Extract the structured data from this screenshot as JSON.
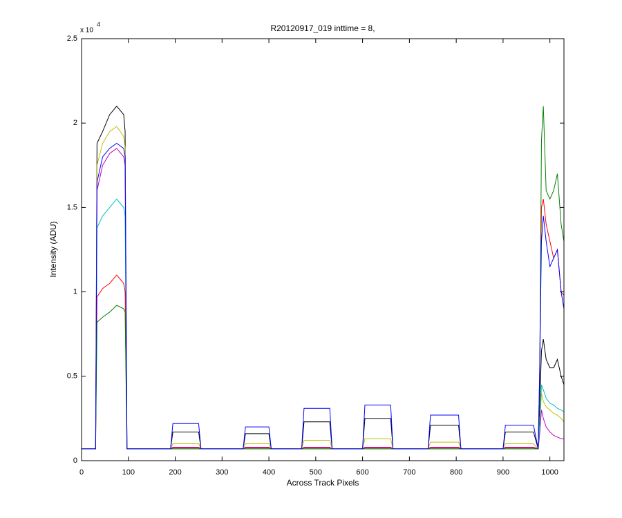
{
  "chart_data": {
    "type": "line",
    "title": "R20120917_019 inttime = 8,",
    "x_label": "Across Track Pixels",
    "y_label": "Intensity (ADU)",
    "y_multiplier": "x 10",
    "y_multiplier_exponent": "4",
    "xlim": [
      0,
      1030
    ],
    "ylim": [
      0,
      2.5
    ],
    "xticks": [
      0,
      100,
      200,
      300,
      400,
      500,
      600,
      700,
      800,
      900,
      1000
    ],
    "yticks": [
      0,
      0.5,
      1,
      1.5,
      2,
      2.5
    ],
    "grid": false,
    "x": [
      0,
      30,
      33,
      45,
      60,
      75,
      90,
      93,
      97,
      190,
      195,
      250,
      255,
      345,
      350,
      400,
      405,
      470,
      475,
      530,
      535,
      600,
      605,
      660,
      665,
      740,
      745,
      805,
      810,
      900,
      905,
      965,
      975,
      978,
      982,
      986,
      992,
      1000,
      1008,
      1016,
      1024,
      1030
    ],
    "series": [
      {
        "color": "#000000",
        "values": [
          0.07,
          0.07,
          1.88,
          1.95,
          2.05,
          2.1,
          2.05,
          1.95,
          0.07,
          0.07,
          0.17,
          0.17,
          0.07,
          0.07,
          0.16,
          0.16,
          0.07,
          0.07,
          0.23,
          0.23,
          0.07,
          0.07,
          0.25,
          0.25,
          0.07,
          0.07,
          0.21,
          0.21,
          0.07,
          0.07,
          0.17,
          0.17,
          0.07,
          0.3,
          0.65,
          0.72,
          0.6,
          0.55,
          0.55,
          0.6,
          0.5,
          0.45
        ]
      },
      {
        "color": "#bfbf00",
        "values": [
          0.07,
          0.07,
          1.75,
          1.88,
          1.95,
          1.98,
          1.92,
          1.85,
          0.07,
          0.07,
          0.1,
          0.1,
          0.07,
          0.07,
          0.1,
          0.1,
          0.07,
          0.07,
          0.12,
          0.12,
          0.07,
          0.07,
          0.13,
          0.13,
          0.07,
          0.07,
          0.11,
          0.11,
          0.07,
          0.07,
          0.1,
          0.1,
          0.07,
          0.2,
          0.4,
          0.35,
          0.32,
          0.3,
          0.28,
          0.27,
          0.25,
          0.23
        ]
      },
      {
        "color": "#bf00bf",
        "values": [
          0.07,
          0.07,
          1.6,
          1.75,
          1.82,
          1.85,
          1.8,
          1.75,
          0.07,
          0.07,
          0.08,
          0.08,
          0.07,
          0.07,
          0.08,
          0.08,
          0.07,
          0.07,
          0.08,
          0.08,
          0.07,
          0.07,
          0.08,
          0.08,
          0.07,
          0.07,
          0.08,
          0.08,
          0.07,
          0.07,
          0.08,
          0.08,
          0.07,
          0.15,
          0.3,
          0.25,
          0.2,
          0.17,
          0.15,
          0.14,
          0.13,
          0.13
        ]
      },
      {
        "color": "#00bfbf",
        "values": [
          0.07,
          0.07,
          1.38,
          1.45,
          1.5,
          1.55,
          1.5,
          1.45,
          0.07,
          0.07,
          0.07,
          0.07,
          0.07,
          0.07,
          0.07,
          0.07,
          0.07,
          0.07,
          0.07,
          0.07,
          0.07,
          0.07,
          0.07,
          0.07,
          0.07,
          0.07,
          0.07,
          0.07,
          0.07,
          0.07,
          0.07,
          0.07,
          0.07,
          0.2,
          0.45,
          0.42,
          0.37,
          0.34,
          0.33,
          0.31,
          0.3,
          0.29
        ]
      },
      {
        "color": "#ff0000",
        "values": [
          0.07,
          0.07,
          0.97,
          1.02,
          1.05,
          1.1,
          1.05,
          1.0,
          0.07,
          0.07,
          0.075,
          0.075,
          0.07,
          0.07,
          0.075,
          0.075,
          0.07,
          0.07,
          0.075,
          0.075,
          0.07,
          0.07,
          0.075,
          0.075,
          0.07,
          0.07,
          0.075,
          0.075,
          0.07,
          0.07,
          0.075,
          0.075,
          0.07,
          0.5,
          1.5,
          1.55,
          1.4,
          1.3,
          1.2,
          1.25,
          1.0,
          0.98
        ]
      },
      {
        "color": "#008000",
        "values": [
          0.07,
          0.07,
          0.82,
          0.85,
          0.88,
          0.92,
          0.9,
          0.88,
          0.07,
          0.07,
          0.07,
          0.07,
          0.07,
          0.07,
          0.07,
          0.07,
          0.07,
          0.07,
          0.07,
          0.07,
          0.07,
          0.07,
          0.07,
          0.07,
          0.07,
          0.07,
          0.07,
          0.07,
          0.07,
          0.07,
          0.07,
          0.07,
          0.07,
          0.4,
          1.9,
          2.1,
          1.6,
          1.55,
          1.6,
          1.7,
          1.4,
          1.3
        ]
      },
      {
        "color": "#0000ff",
        "values": [
          0.07,
          0.07,
          1.65,
          1.8,
          1.85,
          1.88,
          1.85,
          1.8,
          0.07,
          0.07,
          0.22,
          0.22,
          0.07,
          0.07,
          0.2,
          0.2,
          0.07,
          0.07,
          0.31,
          0.31,
          0.07,
          0.07,
          0.33,
          0.33,
          0.07,
          0.07,
          0.27,
          0.27,
          0.07,
          0.07,
          0.21,
          0.21,
          0.07,
          0.5,
          1.3,
          1.45,
          1.3,
          1.15,
          1.2,
          1.25,
          1.0,
          0.9
        ]
      }
    ]
  }
}
